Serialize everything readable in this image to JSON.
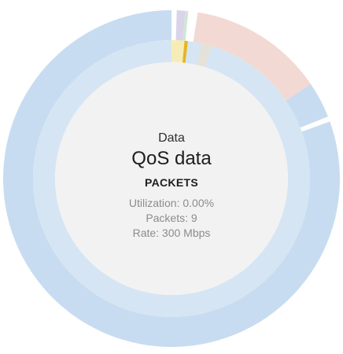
{
  "center": {
    "label": "Data",
    "title": "QoS data",
    "metric": "PACKETS",
    "stats": {
      "utilization": "Utilization: 0.00%",
      "packets": "Packets: 9",
      "rate": "Rate: 300 Mbps"
    }
  },
  "colors": {
    "outer_main": "#c7dcf0",
    "outer_salmon": "#f3d9d3",
    "outer_lavender": "#d9d4ea",
    "outer_green": "#cfe6d6",
    "inner_main": "#d5e5f3",
    "inner_yellow": "#f6edb6",
    "inner_grey": "#e3e1d8",
    "marker_gold": "#e8b422",
    "hole": "#f2f2f2",
    "gap": "#ffffff"
  },
  "chart_data": {
    "type": "pie",
    "rings": [
      {
        "ring": "outer",
        "slices": [
          {
            "value": 0.5,
            "color": "#ffffff"
          },
          {
            "value": 0.8,
            "color": "#d9d4ea"
          },
          {
            "value": 0.3,
            "color": "#cfe6d6"
          },
          {
            "value": 0.9,
            "color": "#ffffff"
          },
          {
            "value": 13.0,
            "color": "#f3d9d3"
          },
          {
            "value": 3.5,
            "color": "#c7dcf0"
          },
          {
            "value": 0.5,
            "color": "#ffffff"
          },
          {
            "value": 80.5,
            "color": "#c7dcf0"
          }
        ]
      },
      {
        "ring": "inner",
        "slices": [
          {
            "value": 1.5,
            "color": "#f6edb6"
          },
          {
            "value": 0.4,
            "color": "#e8b422"
          },
          {
            "value": 1.6,
            "color": "#d5e5f3"
          },
          {
            "value": 1.2,
            "color": "#e3e1d8"
          },
          {
            "value": 95.3,
            "color": "#d5e5f3"
          }
        ]
      }
    ]
  }
}
